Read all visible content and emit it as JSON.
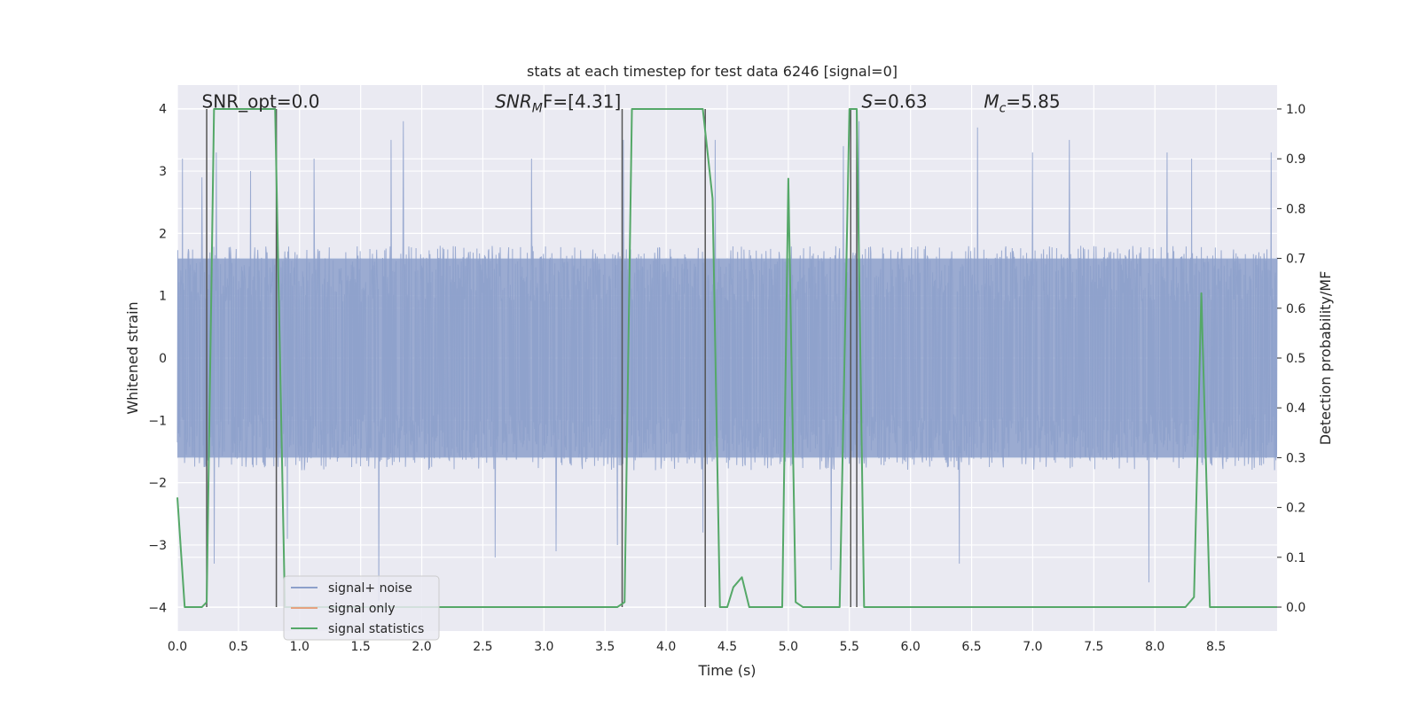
{
  "chart_data": {
    "type": "line",
    "title": "stats at each timestep for test data 6246 [signal=0]",
    "xlabel": "Time (s)",
    "ylabel_left": "Whitened strain",
    "ylabel_right": "Detection probability/MF",
    "xlim": [
      0.0,
      9.0
    ],
    "ylim_left": [
      -4.38,
      4.38
    ],
    "ylim_right": [
      -0.048,
      1.048
    ],
    "x_ticks": [
      "0.0",
      "0.5",
      "1.0",
      "1.5",
      "2.0",
      "2.5",
      "3.0",
      "3.5",
      "4.0",
      "4.5",
      "5.0",
      "5.5",
      "6.0",
      "6.5",
      "7.0",
      "7.5",
      "8.0",
      "8.5"
    ],
    "x_tick_values": [
      0.0,
      0.5,
      1.0,
      1.5,
      2.0,
      2.5,
      3.0,
      3.5,
      4.0,
      4.5,
      5.0,
      5.5,
      6.0,
      6.5,
      7.0,
      7.5,
      8.0,
      8.5
    ],
    "y_left_ticks": [
      "4",
      "3",
      "2",
      "1",
      "0",
      "−1",
      "−2",
      "−3",
      "−4"
    ],
    "y_left_tick_values": [
      4,
      3,
      2,
      1,
      0,
      -1,
      -2,
      -3,
      -4
    ],
    "y_right_ticks": [
      "1.0",
      "0.9",
      "0.8",
      "0.7",
      "0.6",
      "0.5",
      "0.4",
      "0.3",
      "0.2",
      "0.1",
      "0.0"
    ],
    "y_right_tick_values": [
      1.0,
      0.9,
      0.8,
      0.7,
      0.6,
      0.5,
      0.4,
      0.3,
      0.2,
      0.1,
      0.0
    ],
    "grid": true,
    "legend_position": "lower-left",
    "annotations": [
      {
        "id": "snr-opt",
        "prefix": "SNR_opt=0.0",
        "x": 0.2,
        "y": 4.1
      },
      {
        "id": "snr-mf",
        "prefix": "SNR",
        "sub": "M",
        "suffix": "F=[4.31]",
        "x": 2.6,
        "y": 4.1
      },
      {
        "id": "s-stat",
        "prefix": "S",
        "suffix": "=0.63",
        "x": 5.6,
        "y": 4.1
      },
      {
        "id": "mc",
        "prefix": "M",
        "sub": "c",
        "suffix": "=5.85",
        "x": 6.6,
        "y": 4.1
      }
    ],
    "series": [
      {
        "name": "signal+ noise",
        "axis": "left",
        "color": "#8da0cb",
        "opacity": 0.85,
        "style": "noise",
        "n_samples": 2600,
        "band": [
          -1.6,
          1.6
        ],
        "peaks": [
          [
            0.04,
            3.2
          ],
          [
            0.2,
            2.9
          ],
          [
            0.3,
            -3.3
          ],
          [
            0.32,
            3.3
          ],
          [
            0.6,
            3.0
          ],
          [
            0.9,
            -2.9
          ],
          [
            1.12,
            3.2
          ],
          [
            1.65,
            -3.9
          ],
          [
            1.75,
            3.5
          ],
          [
            1.85,
            3.8
          ],
          [
            2.6,
            -3.2
          ],
          [
            2.9,
            3.2
          ],
          [
            3.1,
            -3.1
          ],
          [
            3.6,
            -3.0
          ],
          [
            3.65,
            3.5
          ],
          [
            4.3,
            -2.8
          ],
          [
            4.4,
            3.5
          ],
          [
            5.35,
            -3.4
          ],
          [
            5.45,
            3.4
          ],
          [
            5.58,
            3.8
          ],
          [
            6.4,
            -3.3
          ],
          [
            6.55,
            3.7
          ],
          [
            7.0,
            3.3
          ],
          [
            7.3,
            3.5
          ],
          [
            7.95,
            -3.6
          ],
          [
            8.1,
            3.3
          ],
          [
            8.3,
            3.2
          ],
          [
            8.95,
            3.3
          ]
        ]
      },
      {
        "name": "signal only",
        "axis": "left",
        "color": "#e5a27f",
        "style": "line",
        "x": [],
        "y": []
      },
      {
        "name": "signal statistics",
        "axis": "right",
        "color": "#55a868",
        "style": "line",
        "x": [
          0.0,
          0.06,
          0.2,
          0.24,
          0.3,
          0.8,
          0.88,
          3.6,
          3.66,
          3.72,
          4.3,
          4.38,
          4.44,
          4.5,
          4.55,
          4.62,
          4.68,
          4.95,
          5.0,
          5.06,
          5.12,
          5.42,
          5.5,
          5.56,
          5.62,
          8.25,
          8.32,
          8.38,
          8.45,
          8.52,
          9.0
        ],
        "y": [
          0.22,
          0.0,
          0.0,
          0.01,
          1.0,
          1.0,
          0.0,
          0.0,
          0.01,
          1.0,
          1.0,
          0.82,
          0.0,
          0.0,
          0.04,
          0.06,
          0.0,
          0.0,
          0.86,
          0.01,
          0.0,
          0.0,
          1.0,
          1.0,
          0.0,
          0.0,
          0.02,
          0.63,
          0.0,
          0.0,
          0.0
        ]
      }
    ],
    "markers": {
      "color": "#555555",
      "x": [
        0.24,
        0.81,
        3.64,
        4.32,
        5.51,
        5.56
      ]
    }
  }
}
